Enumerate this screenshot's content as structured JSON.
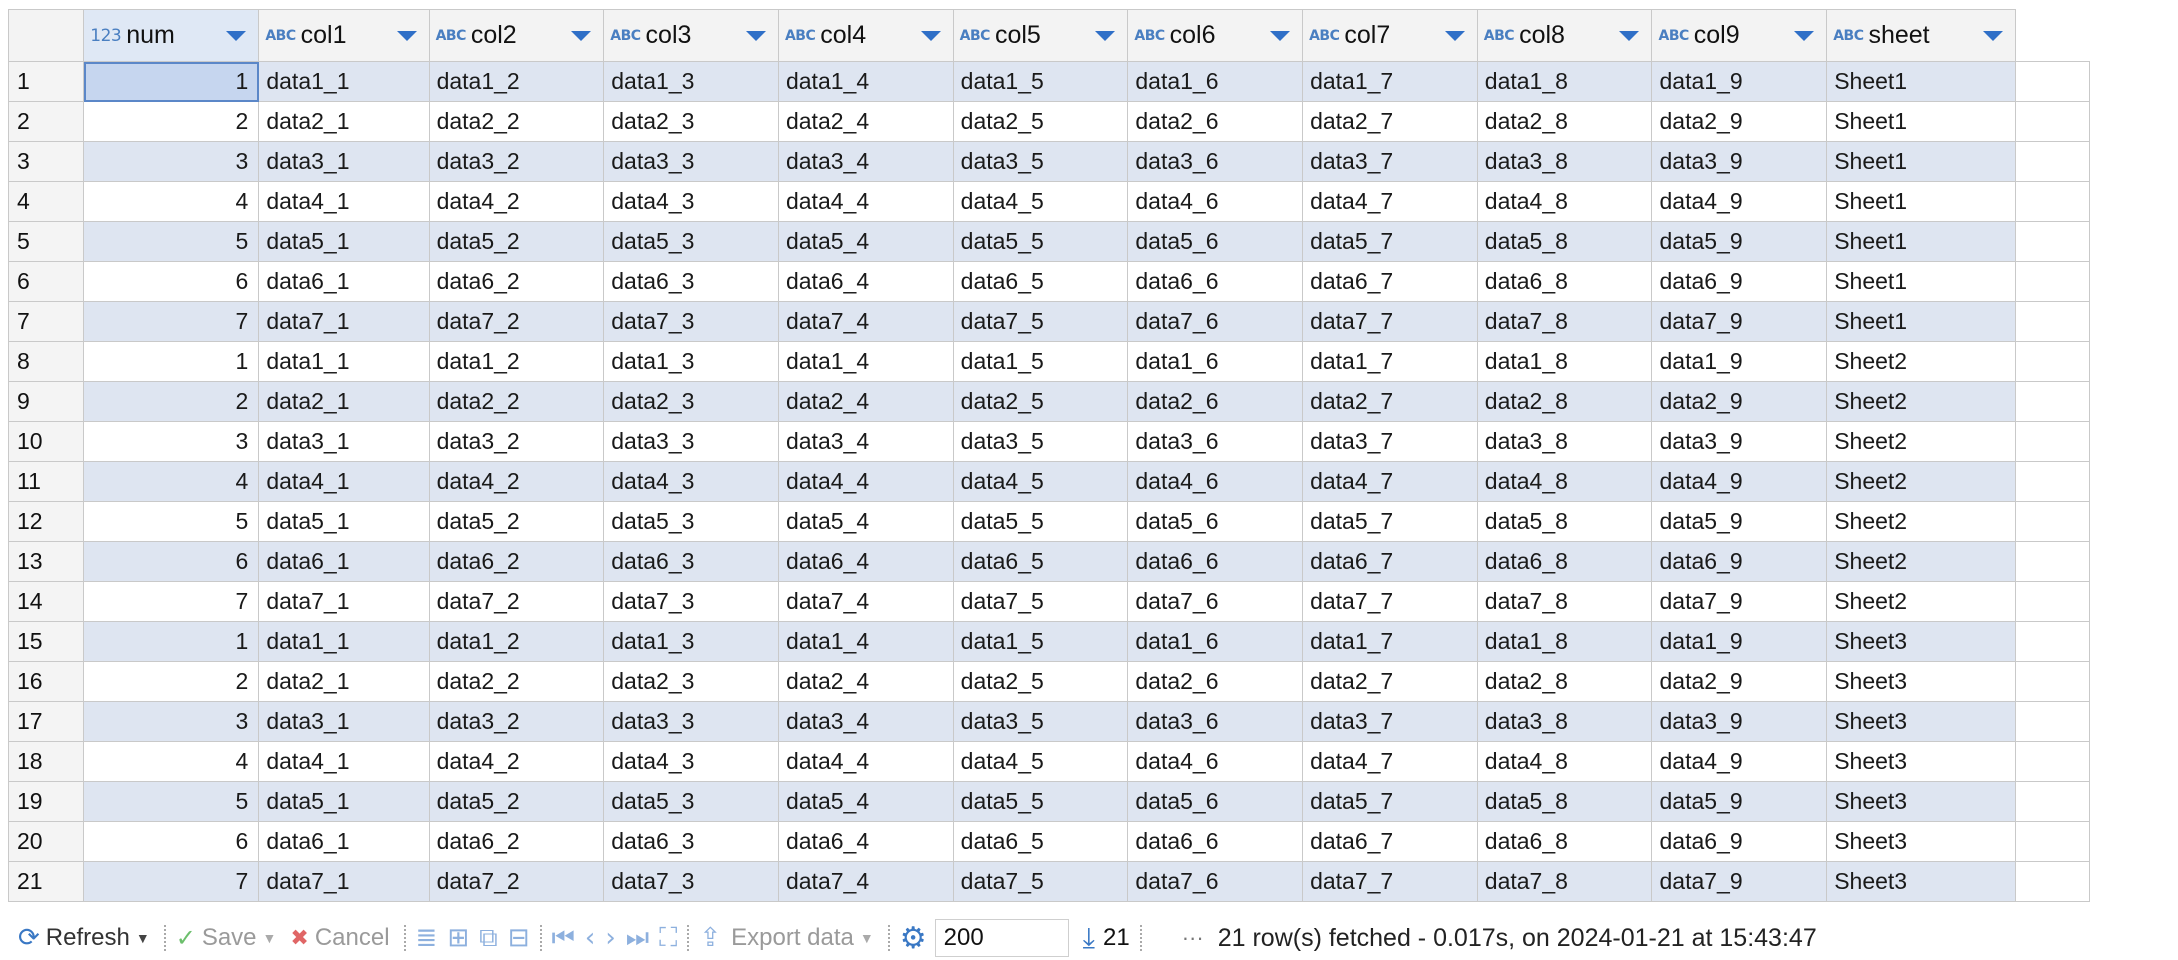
{
  "grid": {
    "columns": [
      {
        "name": "num",
        "type_icon": "123",
        "kind": "number"
      },
      {
        "name": "col1",
        "type_icon": "ABC",
        "kind": "text"
      },
      {
        "name": "col2",
        "type_icon": "ABC",
        "kind": "text"
      },
      {
        "name": "col3",
        "type_icon": "ABC",
        "kind": "text"
      },
      {
        "name": "col4",
        "type_icon": "ABC",
        "kind": "text"
      },
      {
        "name": "col5",
        "type_icon": "ABC",
        "kind": "text"
      },
      {
        "name": "col6",
        "type_icon": "ABC",
        "kind": "text"
      },
      {
        "name": "col7",
        "type_icon": "ABC",
        "kind": "text"
      },
      {
        "name": "col8",
        "type_icon": "ABC",
        "kind": "text"
      },
      {
        "name": "col9",
        "type_icon": "ABC",
        "kind": "text"
      },
      {
        "name": "sheet",
        "type_icon": "ABC",
        "kind": "text"
      }
    ],
    "rows": [
      [
        "1",
        "1",
        "data1_1",
        "data1_2",
        "data1_3",
        "data1_4",
        "data1_5",
        "data1_6",
        "data1_7",
        "data1_8",
        "data1_9",
        "Sheet1"
      ],
      [
        "2",
        "2",
        "data2_1",
        "data2_2",
        "data2_3",
        "data2_4",
        "data2_5",
        "data2_6",
        "data2_7",
        "data2_8",
        "data2_9",
        "Sheet1"
      ],
      [
        "3",
        "3",
        "data3_1",
        "data3_2",
        "data3_3",
        "data3_4",
        "data3_5",
        "data3_6",
        "data3_7",
        "data3_8",
        "data3_9",
        "Sheet1"
      ],
      [
        "4",
        "4",
        "data4_1",
        "data4_2",
        "data4_3",
        "data4_4",
        "data4_5",
        "data4_6",
        "data4_7",
        "data4_8",
        "data4_9",
        "Sheet1"
      ],
      [
        "5",
        "5",
        "data5_1",
        "data5_2",
        "data5_3",
        "data5_4",
        "data5_5",
        "data5_6",
        "data5_7",
        "data5_8",
        "data5_9",
        "Sheet1"
      ],
      [
        "6",
        "6",
        "data6_1",
        "data6_2",
        "data6_3",
        "data6_4",
        "data6_5",
        "data6_6",
        "data6_7",
        "data6_8",
        "data6_9",
        "Sheet1"
      ],
      [
        "7",
        "7",
        "data7_1",
        "data7_2",
        "data7_3",
        "data7_4",
        "data7_5",
        "data7_6",
        "data7_7",
        "data7_8",
        "data7_9",
        "Sheet1"
      ],
      [
        "8",
        "1",
        "data1_1",
        "data1_2",
        "data1_3",
        "data1_4",
        "data1_5",
        "data1_6",
        "data1_7",
        "data1_8",
        "data1_9",
        "Sheet2"
      ],
      [
        "9",
        "2",
        "data2_1",
        "data2_2",
        "data2_3",
        "data2_4",
        "data2_5",
        "data2_6",
        "data2_7",
        "data2_8",
        "data2_9",
        "Sheet2"
      ],
      [
        "10",
        "3",
        "data3_1",
        "data3_2",
        "data3_3",
        "data3_4",
        "data3_5",
        "data3_6",
        "data3_7",
        "data3_8",
        "data3_9",
        "Sheet2"
      ],
      [
        "11",
        "4",
        "data4_1",
        "data4_2",
        "data4_3",
        "data4_4",
        "data4_5",
        "data4_6",
        "data4_7",
        "data4_8",
        "data4_9",
        "Sheet2"
      ],
      [
        "12",
        "5",
        "data5_1",
        "data5_2",
        "data5_3",
        "data5_4",
        "data5_5",
        "data5_6",
        "data5_7",
        "data5_8",
        "data5_9",
        "Sheet2"
      ],
      [
        "13",
        "6",
        "data6_1",
        "data6_2",
        "data6_3",
        "data6_4",
        "data6_5",
        "data6_6",
        "data6_7",
        "data6_8",
        "data6_9",
        "Sheet2"
      ],
      [
        "14",
        "7",
        "data7_1",
        "data7_2",
        "data7_3",
        "data7_4",
        "data7_5",
        "data7_6",
        "data7_7",
        "data7_8",
        "data7_9",
        "Sheet2"
      ],
      [
        "15",
        "1",
        "data1_1",
        "data1_2",
        "data1_3",
        "data1_4",
        "data1_5",
        "data1_6",
        "data1_7",
        "data1_8",
        "data1_9",
        "Sheet3"
      ],
      [
        "16",
        "2",
        "data2_1",
        "data2_2",
        "data2_3",
        "data2_4",
        "data2_5",
        "data2_6",
        "data2_7",
        "data2_8",
        "data2_9",
        "Sheet3"
      ],
      [
        "17",
        "3",
        "data3_1",
        "data3_2",
        "data3_3",
        "data3_4",
        "data3_5",
        "data3_6",
        "data3_7",
        "data3_8",
        "data3_9",
        "Sheet3"
      ],
      [
        "18",
        "4",
        "data4_1",
        "data4_2",
        "data4_3",
        "data4_4",
        "data4_5",
        "data4_6",
        "data4_7",
        "data4_8",
        "data4_9",
        "Sheet3"
      ],
      [
        "19",
        "5",
        "data5_1",
        "data5_2",
        "data5_3",
        "data5_4",
        "data5_5",
        "data5_6",
        "data5_7",
        "data5_8",
        "data5_9",
        "Sheet3"
      ],
      [
        "20",
        "6",
        "data6_1",
        "data6_2",
        "data6_3",
        "data6_4",
        "data6_5",
        "data6_6",
        "data6_7",
        "data6_8",
        "data6_9",
        "Sheet3"
      ],
      [
        "21",
        "7",
        "data7_1",
        "data7_2",
        "data7_3",
        "data7_4",
        "data7_5",
        "data7_6",
        "data7_7",
        "data7_8",
        "data7_9",
        "Sheet3"
      ]
    ],
    "colors": {
      "row_stripe": "#dee5f1",
      "selected_cell": "#c6d6ef",
      "accent": "#2f6fc7"
    }
  },
  "toolbar": {
    "refresh_label": "Refresh",
    "save_label": "Save",
    "cancel_label": "Cancel",
    "export_label": "Export data",
    "fetch_size": "200",
    "row_count": "21",
    "ellipsis": "···",
    "status": "21 row(s) fetched - 0.017s, on 2024-01-21 at 15:43:47",
    "icons": [
      "refresh-icon",
      "save-icon",
      "cancel-icon",
      "edit-row-icon",
      "add-row-icon",
      "copy-row-icon",
      "delete-row-icon",
      "first-page-icon",
      "previous-page-icon",
      "next-page-icon",
      "last-page-icon",
      "fetch-all-icon",
      "export-icon",
      "settings-icon",
      "row-count-icon"
    ]
  }
}
